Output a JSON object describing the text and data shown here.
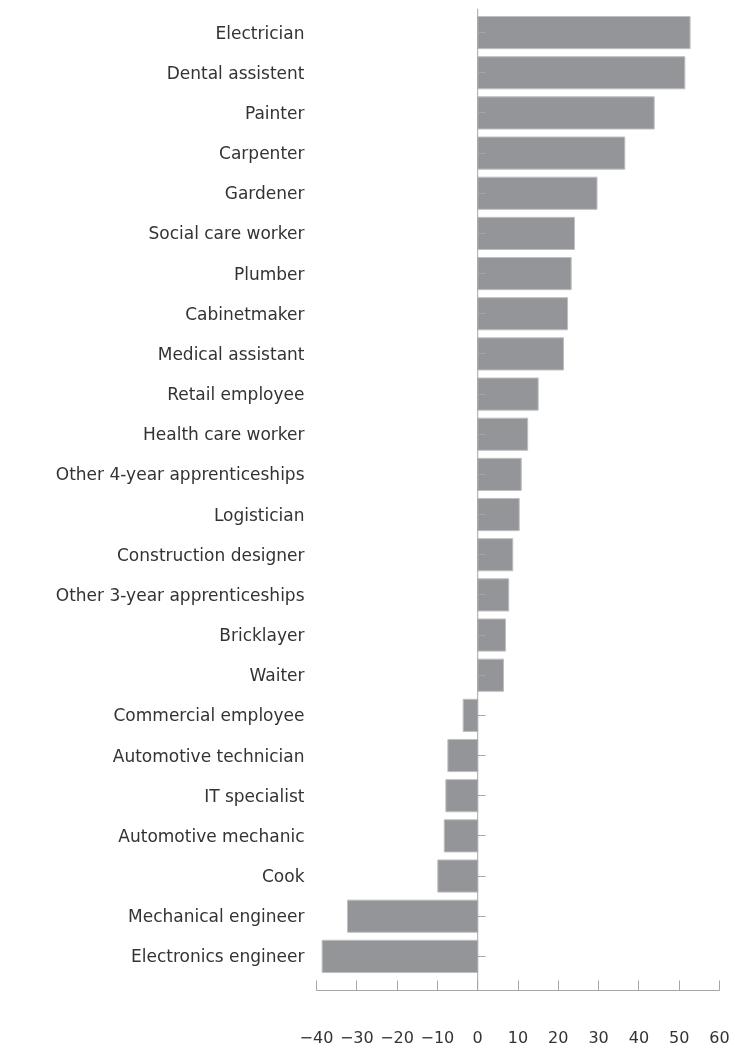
{
  "chart_data": {
    "type": "bar",
    "orientation": "horizontal",
    "categories": [
      "Electrician",
      "Dental assistent",
      "Painter",
      "Carpenter",
      "Gardener",
      "Social care worker",
      "Plumber",
      "Cabinetmaker",
      "Medical assistant",
      "Retail employee",
      "Health care worker",
      "Other 4-year apprenticeships",
      "Logistician",
      "Construction designer",
      "Other 3-year apprenticeships",
      "Bricklayer",
      "Waiter",
      "Commercial employee",
      "Automotive technician",
      "IT specialist",
      "Automotive mechanic",
      "Cook",
      "Mechanical engineer",
      "Electronics engineer"
    ],
    "values": [
      52.7,
      51.4,
      43.8,
      36.5,
      29.6,
      24.0,
      23.2,
      22.3,
      21.3,
      15.0,
      12.4,
      10.8,
      10.3,
      8.7,
      7.7,
      6.9,
      6.4,
      -3.6,
      -7.4,
      -7.9,
      -8.3,
      -9.9,
      -32.3,
      -38.6
    ],
    "color": "#939598",
    "xlim": [
      -40,
      60
    ],
    "xticks": [
      -40,
      -30,
      -20,
      -10,
      0,
      10,
      20,
      30,
      40,
      50,
      60
    ],
    "grid": false,
    "ref_lines": [
      {
        "axis": "x",
        "value": 0,
        "color": "#a6a6a6"
      }
    ]
  }
}
